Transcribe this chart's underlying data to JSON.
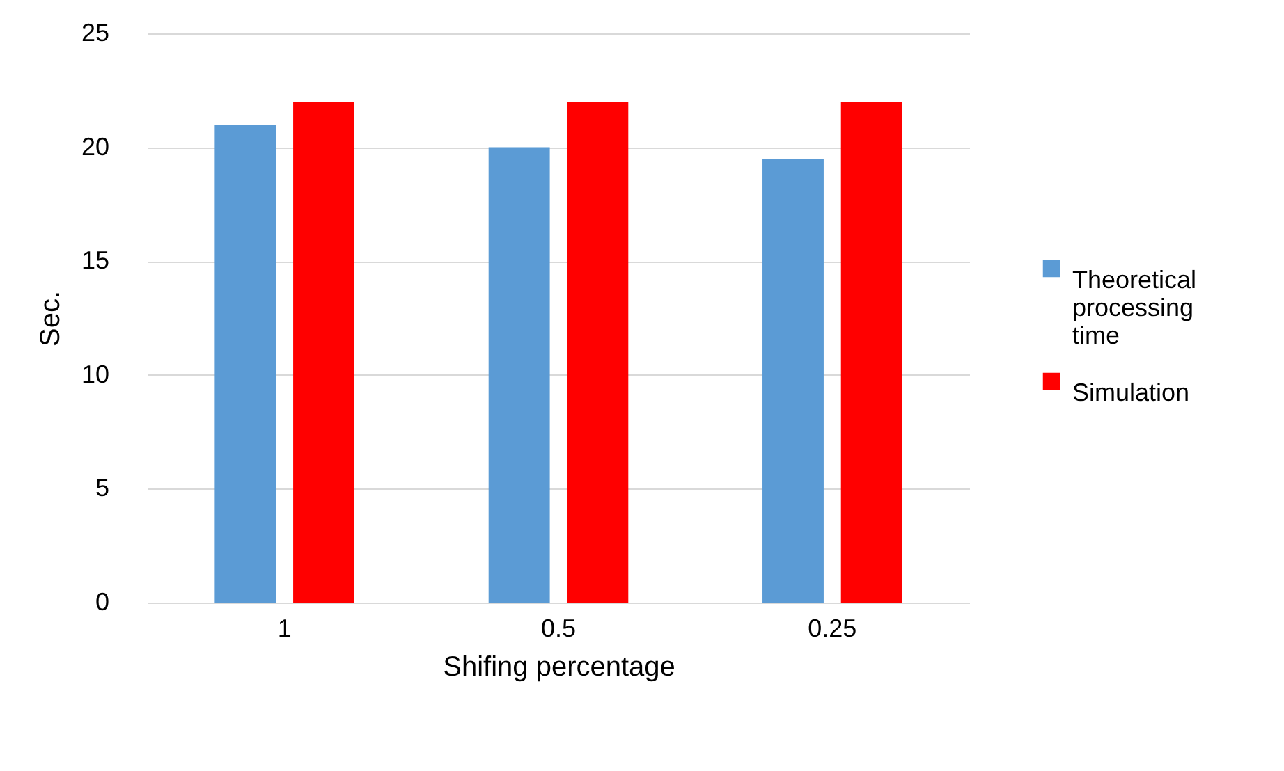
{
  "chart_data": {
    "type": "bar",
    "xlabel": "Shifing percentage",
    "ylabel": "Sec.",
    "categories": [
      "1",
      "0.5",
      "0.25"
    ],
    "series": [
      {
        "name": "Theoretical processing time",
        "color": "#5b9bd5",
        "values": [
          21,
          20,
          19.5
        ]
      },
      {
        "name": "Simulation",
        "color": "#ff0000",
        "values": [
          22,
          22,
          22
        ]
      }
    ],
    "ylim": [
      0,
      25
    ],
    "yticks": [
      0,
      5,
      10,
      15,
      20,
      25
    ],
    "grid": "y",
    "legend": "right"
  }
}
